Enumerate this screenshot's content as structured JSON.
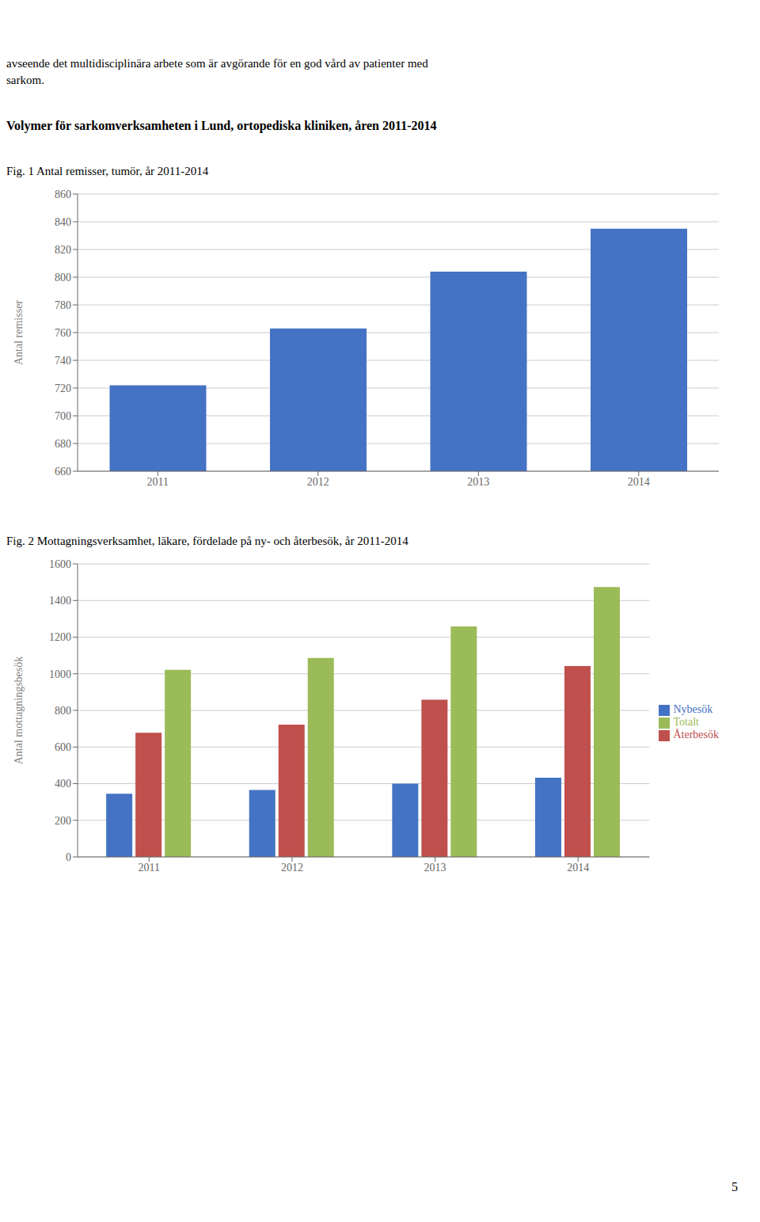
{
  "chart_data": [
    {
      "type": "bar",
      "annotations": [
        "avseende det multidisciplinära arbete som är avgörande för en god vård av patienter med",
        "sarkom.",
        "Volymer för sarkomverksamheten i Lund, ortopediska kliniken, åren 2011-2014"
      ],
      "title": "Fig. 1 Antal remisser, tumör, år 2011-2014",
      "y_label": "Antal remisser",
      "categories": [
        "2011",
        "2012",
        "2013",
        "2014"
      ],
      "values": [
        722,
        763,
        804,
        835
      ],
      "color": "#4472C4",
      "ylim": [
        660,
        860
      ],
      "yticks": [
        660,
        680,
        700,
        720,
        740,
        760,
        780,
        800,
        820,
        840,
        860
      ],
      "grid": true
    },
    {
      "type": "bar",
      "title": "Fig. 2 Mottagningsverksamhet, läkare, fördelade på ny- och återbesök, år 2011-2014",
      "y_label": "Antal mottagningsbesök",
      "categories": [
        "2011",
        "2012",
        "2013",
        "2014"
      ],
      "series": [
        {
          "name": "Nybesök",
          "color": "#4472C4",
          "values": [
            345,
            365,
            400,
            432
          ]
        },
        {
          "name": "Återbesök",
          "color": "#C0504D",
          "values": [
            678,
            722,
            858,
            1042
          ]
        },
        {
          "name": "Totalt",
          "color": "#9BBB59",
          "values": [
            1022,
            1086,
            1258,
            1474
          ]
        }
      ],
      "ylim": [
        0,
        1600
      ],
      "yticks": [
        0,
        200,
        400,
        600,
        800,
        1000,
        1200,
        1400,
        1600
      ],
      "grid": true,
      "legend": "right",
      "annotations": [
        "5"
      ]
    }
  ]
}
